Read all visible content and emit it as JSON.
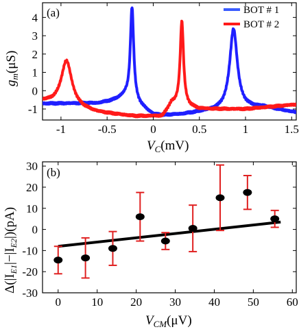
{
  "chart_data": [
    {
      "type": "line",
      "panel_label": "(a)",
      "xlabel": {
        "main": "V",
        "sub": "C",
        "unit": "(mV)"
      },
      "ylabel": {
        "main": "g",
        "sub": "m",
        "unit": "(μS)"
      },
      "xlim": [
        -1.2,
        1.55
      ],
      "ylim": [
        -1.6,
        4.8
      ],
      "x_ticks": [
        -1,
        -0.5,
        0,
        0.5,
        1,
        1.5
      ],
      "x_tick_labels": [
        "-1",
        "-0.5",
        "0",
        "0.5",
        "1",
        "1.5"
      ],
      "y_ticks": [
        -1,
        0,
        1,
        2,
        3,
        4
      ],
      "y_tick_labels": [
        "-1",
        "0",
        "1",
        "2",
        "3",
        "4"
      ],
      "legend_position": "top-right",
      "series": [
        {
          "name": "BOT # 1",
          "color": "#1f1fff",
          "baseline": [
            [
              -1.2,
              -0.7
            ],
            [
              -0.6,
              -0.68
            ],
            [
              -0.45,
              -0.55
            ],
            [
              -0.3,
              -0.3
            ],
            [
              0.0,
              -1.3
            ],
            [
              0.1,
              -1.35
            ],
            [
              0.3,
              -1.3
            ],
            [
              0.55,
              -1.15
            ],
            [
              1.2,
              -0.9
            ],
            [
              1.55,
              -1.2
            ]
          ],
          "peaks": [
            {
              "x0": -0.23,
              "h": 5.1,
              "w": 0.022
            },
            {
              "x0": 0.87,
              "h": 4.4,
              "w": 0.05
            }
          ]
        },
        {
          "name": "BOT # 2",
          "color": "#ff1a1a",
          "baseline": [
            [
              -1.2,
              -0.6
            ],
            [
              -0.6,
              -1.2
            ],
            [
              -0.2,
              -1.4
            ],
            [
              0.1,
              -1.4
            ],
            [
              0.2,
              -0.7
            ],
            [
              0.5,
              -1.0
            ],
            [
              1.0,
              -1.0
            ],
            [
              1.55,
              -0.75
            ]
          ],
          "peaks": [
            {
              "x0": -0.94,
              "h": 2.5,
              "w": 0.07
            },
            {
              "x0": 0.31,
              "h": 4.6,
              "w": 0.022
            }
          ]
        }
      ]
    },
    {
      "type": "scatter",
      "panel_label": "(b)",
      "xlabel": {
        "main": "V",
        "sub": "CM",
        "unit": "(μV)"
      },
      "ylabel": {
        "text": "Δ(|I",
        "sub1": "E1",
        "mid": "|−|I",
        "sub2": "E2",
        "end": "|)(pA)"
      },
      "xlim": [
        -4,
        61
      ],
      "ylim": [
        -30,
        32
      ],
      "x_ticks": [
        0,
        10,
        20,
        30,
        40,
        50,
        60
      ],
      "x_tick_labels": [
        "0",
        "10",
        "20",
        "30",
        "40",
        "50",
        "60"
      ],
      "y_ticks": [
        -30,
        -20,
        -10,
        0,
        10,
        20,
        30
      ],
      "y_tick_labels": [
        "-30",
        "-20",
        "-10",
        "0",
        "10",
        "20",
        "30"
      ],
      "points": [
        {
          "x": 0,
          "y": -14.5,
          "err": 6.5
        },
        {
          "x": 7,
          "y": -13.5,
          "err": 9.5
        },
        {
          "x": 14,
          "y": -9.0,
          "err": 8.0
        },
        {
          "x": 21,
          "y": 6.0,
          "err": 11.5
        },
        {
          "x": 27.5,
          "y": -5.5,
          "err": 4.0
        },
        {
          "x": 34.5,
          "y": 0.5,
          "err": 11.0
        },
        {
          "x": 41.5,
          "y": 15.0,
          "err": 15.5
        },
        {
          "x": 48.5,
          "y": 17.5,
          "err": 8.0
        },
        {
          "x": 55.5,
          "y": 5.0,
          "err": 4.0
        }
      ],
      "fit_line": {
        "x": [
          0,
          57
        ],
        "y": [
          -8.0,
          3.5
        ]
      },
      "point_color": "#000000",
      "error_color": "#e02020"
    }
  ]
}
